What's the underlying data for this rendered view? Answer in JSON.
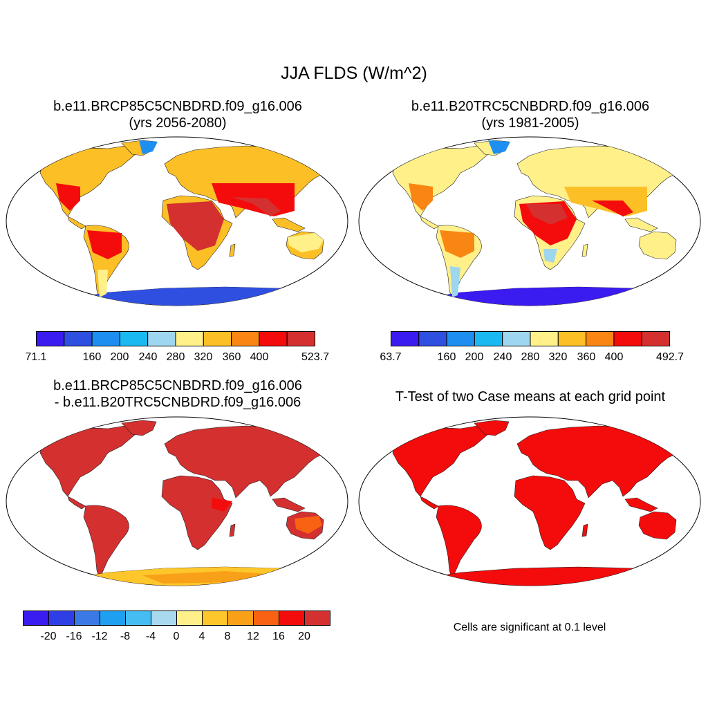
{
  "title": "JJA FLDS (W/m^2)",
  "panels": {
    "future": {
      "title_line1": "b.e11.BRCP85C5CNBDRD.f09_g16.006",
      "title_line2": "(yrs 2056-2080)",
      "colorbar": {
        "colors": [
          "#3a1bf0",
          "#2f4fe0",
          "#1e8ff0",
          "#1bb9f2",
          "#9fd6ef",
          "#fff08a",
          "#fdbf26",
          "#f98612",
          "#f40b0b",
          "#d3302f"
        ],
        "labels": [
          "71.1",
          "160",
          "200",
          "240",
          "280",
          "320",
          "360",
          "400",
          "523.7"
        ]
      }
    },
    "historical": {
      "title_line1": "b.e11.B20TRC5CNBDRD.f09_g16.006",
      "title_line2": "(yrs 1981-2005)",
      "colorbar": {
        "colors": [
          "#3a1bf0",
          "#2f4fe0",
          "#1e8ff0",
          "#1bb9f2",
          "#9fd6ef",
          "#fff08a",
          "#fdbf26",
          "#f98612",
          "#f40b0b",
          "#d3302f"
        ],
        "labels": [
          "63.7",
          "160",
          "200",
          "240",
          "280",
          "320",
          "360",
          "400",
          "492.7"
        ]
      }
    },
    "difference": {
      "title_line1": "b.e11.BRCP85C5CNBDRD.f09_g16.006",
      "title_line2": "- b.e11.B20TRC5CNBDRD.f09_g16.006",
      "colorbar": {
        "colors": [
          "#3a1bf0",
          "#2f3fe6",
          "#3b79e6",
          "#1e9fef",
          "#45bdf2",
          "#a9d9ef",
          "#fff08a",
          "#fdc62a",
          "#f9a019",
          "#f86212",
          "#f40b0b",
          "#d3302f"
        ],
        "labels": [
          "-20",
          "-16",
          "-12",
          "-8",
          "-4",
          "0",
          "4",
          "8",
          "12",
          "16",
          "20"
        ]
      }
    },
    "ttest": {
      "title": "T-Test of two Case means at each grid point",
      "note": "Cells are significant at 0.1 level"
    }
  }
}
